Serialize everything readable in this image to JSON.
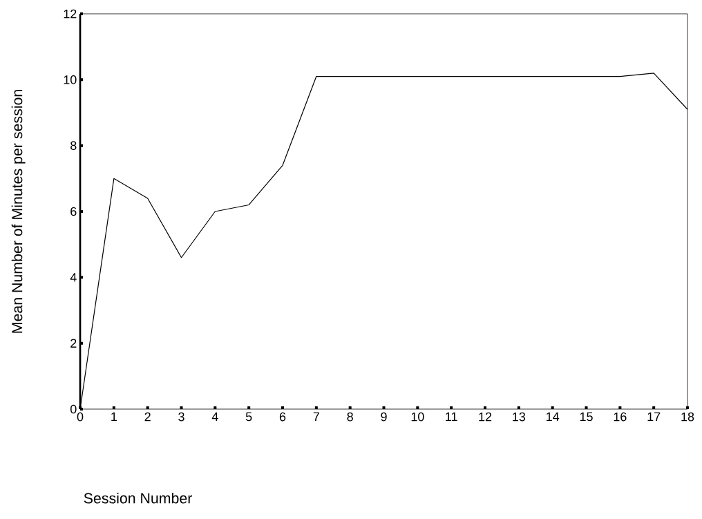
{
  "chart_data": {
    "type": "line",
    "xlabel": "Session Number",
    "ylabel": "Mean Number of Minutes per session",
    "x": [
      0,
      1,
      2,
      3,
      4,
      5,
      6,
      7,
      8,
      9,
      10,
      11,
      12,
      13,
      14,
      15,
      16,
      17,
      18
    ],
    "series": [
      {
        "color": "#000000",
        "values": [
          0,
          7.0,
          6.4,
          4.6,
          6.0,
          6.2,
          7.4,
          10.1,
          10.1,
          10.1,
          10.1,
          10.1,
          10.1,
          10.1,
          10.1,
          10.1,
          10.1,
          10.2,
          9.1
        ]
      }
    ],
    "xlim": [
      0,
      18
    ],
    "ylim": [
      0,
      12
    ],
    "xticks": [
      0,
      1,
      2,
      3,
      4,
      5,
      6,
      7,
      8,
      9,
      10,
      11,
      12,
      13,
      14,
      15,
      16,
      17,
      18
    ],
    "yticks": [
      0,
      2,
      4,
      6,
      8,
      10,
      12
    ]
  }
}
